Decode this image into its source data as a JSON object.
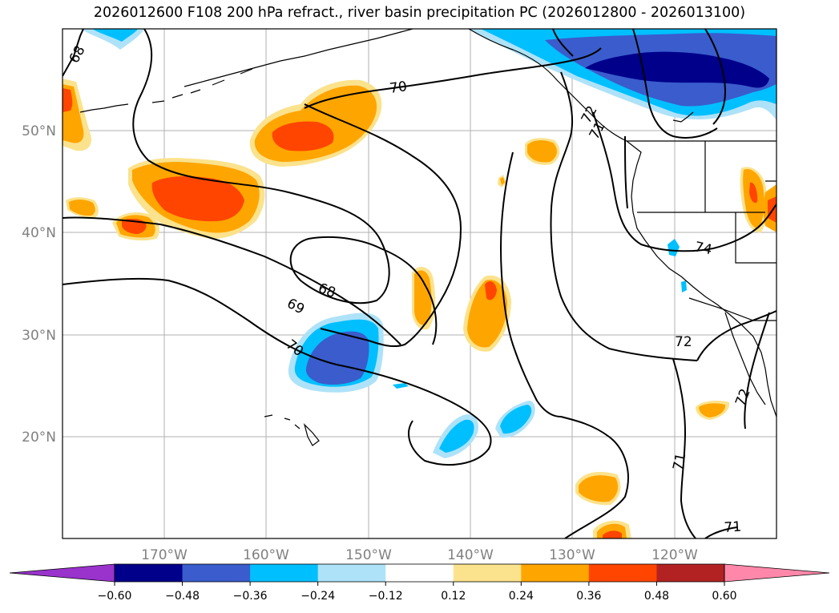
{
  "title": "2026012600 F108 200 hPa refract., river basin precipitation PC (2026012800 - 2026013100)",
  "map": {
    "lat_ticks": [
      "50°N",
      "40°N",
      "30°N",
      "20°N"
    ],
    "lon_ticks": [
      "170°W",
      "160°W",
      "150°W",
      "140°W",
      "130°W",
      "120°W"
    ],
    "contour_labels": [
      "68",
      "70",
      "71",
      "72",
      "74",
      "68",
      "69",
      "70",
      "72",
      "71",
      "71",
      "72"
    ]
  },
  "colorbar": {
    "tick_labels": [
      "−0.60",
      "−0.48",
      "−0.36",
      "−0.24",
      "−0.12",
      "0.12",
      "0.24",
      "0.36",
      "0.48",
      "0.60"
    ],
    "colors": [
      "#9933cc",
      "#00008b",
      "#3a5ccc",
      "#00bfff",
      "#aee2f8",
      "#ffffff",
      "#fbe28c",
      "#ffa500",
      "#ff4500",
      "#b22222",
      "#ff88aa"
    ]
  }
}
